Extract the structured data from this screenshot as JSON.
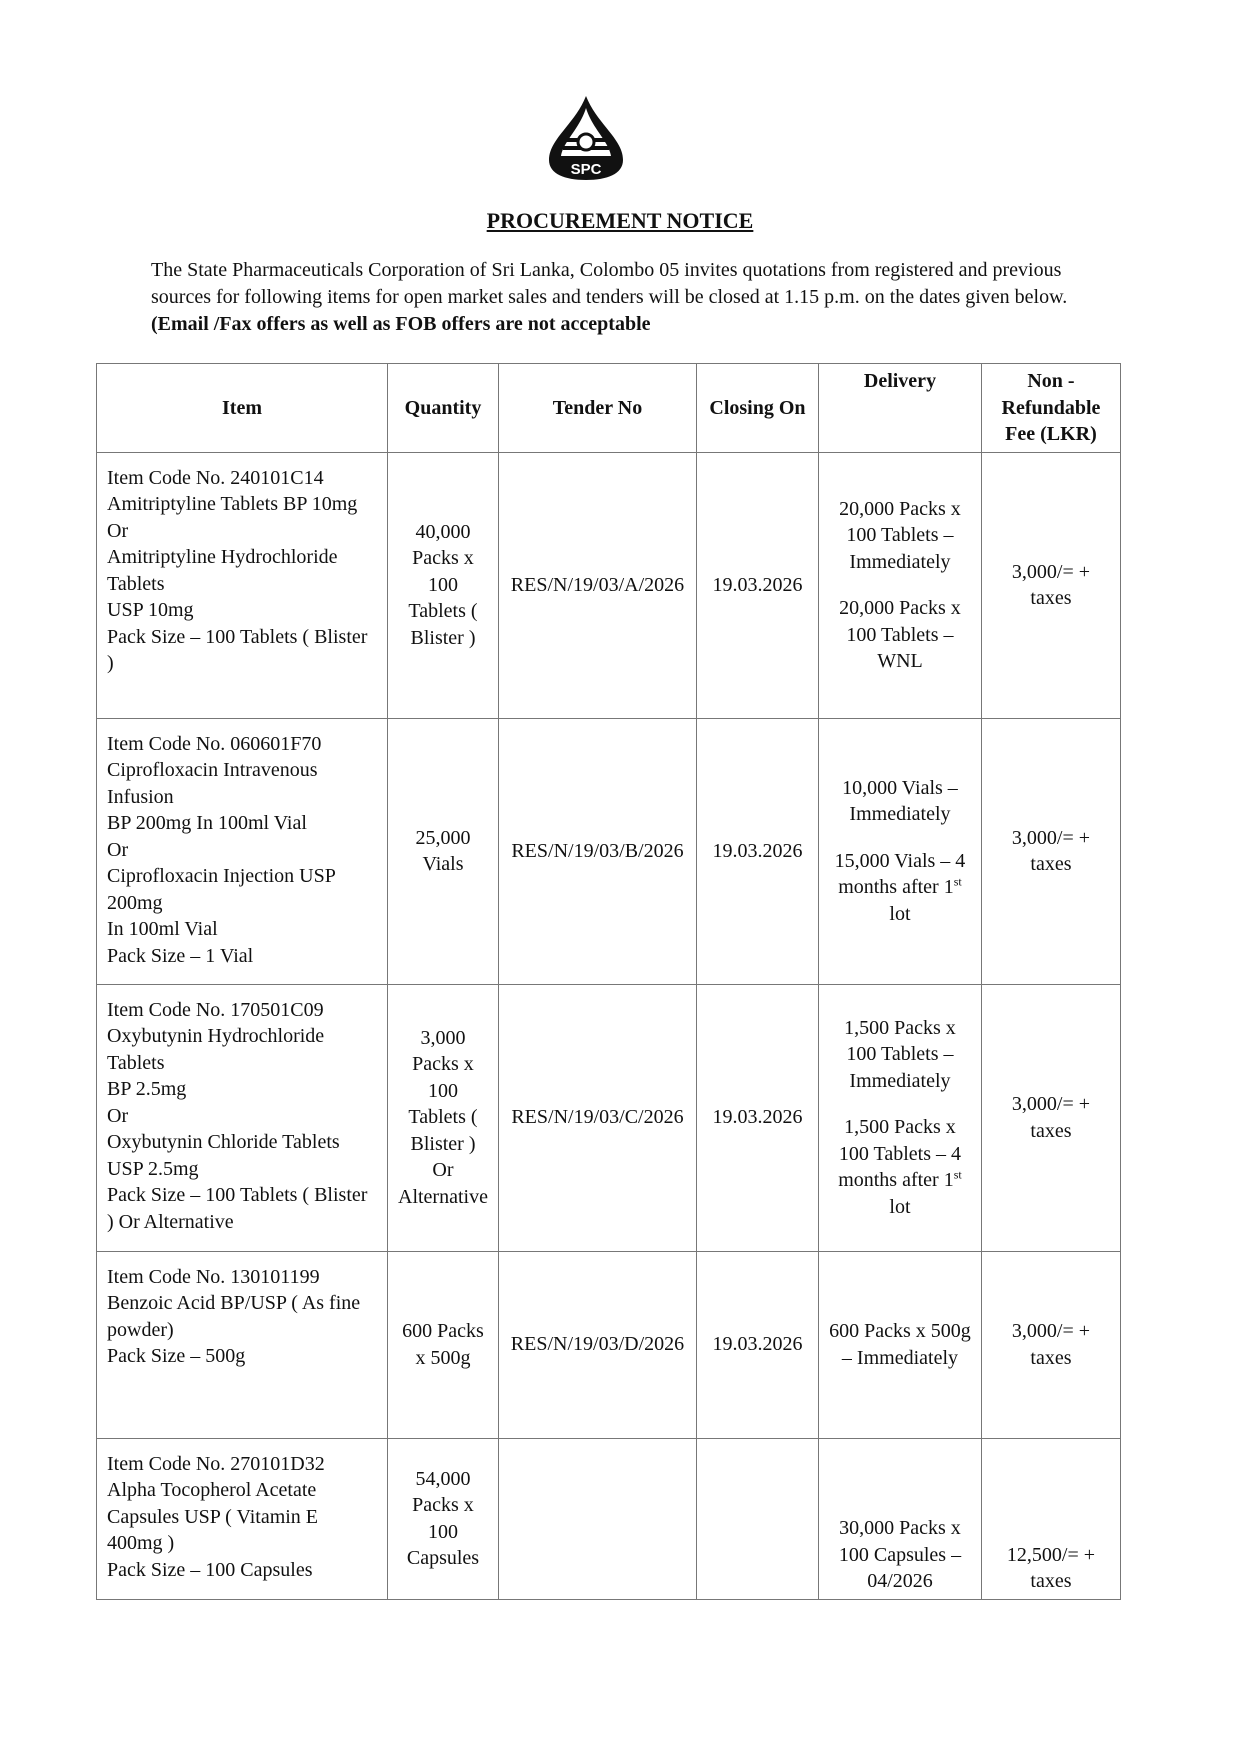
{
  "logo": {
    "text": "SPC"
  },
  "title": "PROCUREMENT NOTICE",
  "intro": {
    "text": "The State Pharmaceuticals Corporation of Sri Lanka, Colombo 05 invites quotations from registered and previous sources for following items for open market sales and tenders will be closed at 1.15 p.m. on the dates given below.",
    "bold": " (Email /Fax offers as well as FOB offers are not acceptable"
  },
  "table": {
    "headers": [
      "Item",
      "Quantity",
      "Tender No",
      "Closing On",
      "Delivery",
      "Non - Refundable Fee (LKR)"
    ],
    "rows": [
      {
        "item": [
          "Item Code No. 240101C14",
          "Amitriptyline Tablets BP 10mg",
          "Or",
          "Amitriptyline Hydrochloride Tablets",
          "USP 10mg",
          "Pack Size – 100 Tablets ( Blister )"
        ],
        "quantity": "40,000 Packs x 100 Tablets ( Blister )",
        "tender": "RES/N/19/03/A/2026",
        "closing": "19.03.2026",
        "delivery": [
          "20,000 Packs x 100 Tablets – Immediately",
          "20,000 Packs x 100 Tablets – WNL"
        ],
        "fee": "3,000/= + taxes"
      },
      {
        "item": [
          "Item Code No. 060601F70",
          "Ciprofloxacin Intravenous Infusion",
          "BP 200mg In 100ml Vial",
          "Or",
          "Ciprofloxacin Injection USP 200mg",
          "In 100ml Vial",
          "Pack Size – 1 Vial"
        ],
        "quantity": "25,000 Vials",
        "tender": "RES/N/19/03/B/2026",
        "closing": "19.03.2026",
        "delivery": [
          "10,000 Vials – Immediately",
          "15,000 Vials – 4 months after 1st lot"
        ],
        "fee": "3,000/= + taxes"
      },
      {
        "item": [
          "Item Code No. 170501C09",
          "Oxybutynin Hydrochloride Tablets",
          "BP 2.5mg",
          "Or",
          "Oxybutynin Chloride Tablets",
          "USP 2.5mg",
          "Pack Size – 100 Tablets ( Blister ) Or Alternative"
        ],
        "quantity": "3,000 Packs x 100 Tablets ( Blister ) Or Alternative",
        "tender": "RES/N/19/03/C/2026",
        "closing": "19.03.2026",
        "delivery": [
          "1,500 Packs x 100 Tablets – Immediately",
          "1,500 Packs x 100 Tablets – 4 months after 1st lot"
        ],
        "fee": "3,000/= + taxes"
      },
      {
        "item": [
          "Item Code No. 130101199",
          "Benzoic Acid BP/USP ( As fine powder)",
          "Pack Size – 500g"
        ],
        "quantity": "600 Packs x 500g",
        "tender": "RES/N/19/03/D/2026",
        "closing": "19.03.2026",
        "delivery": [
          "600 Packs x 500g – Immediately"
        ],
        "fee": "3,000/= + taxes"
      },
      {
        "item": [
          "Item Code No. 270101D32",
          "Alpha Tocopherol Acetate Capsules USP ( Vitamin E 400mg )",
          "Pack Size – 100 Capsules"
        ],
        "quantity": "54,000 Packs x 100 Capsules",
        "tender": "",
        "closing": "",
        "delivery": [
          "30,000 Packs x 100 Capsules – 04/2026"
        ],
        "fee": "12,500/= + taxes"
      }
    ]
  }
}
